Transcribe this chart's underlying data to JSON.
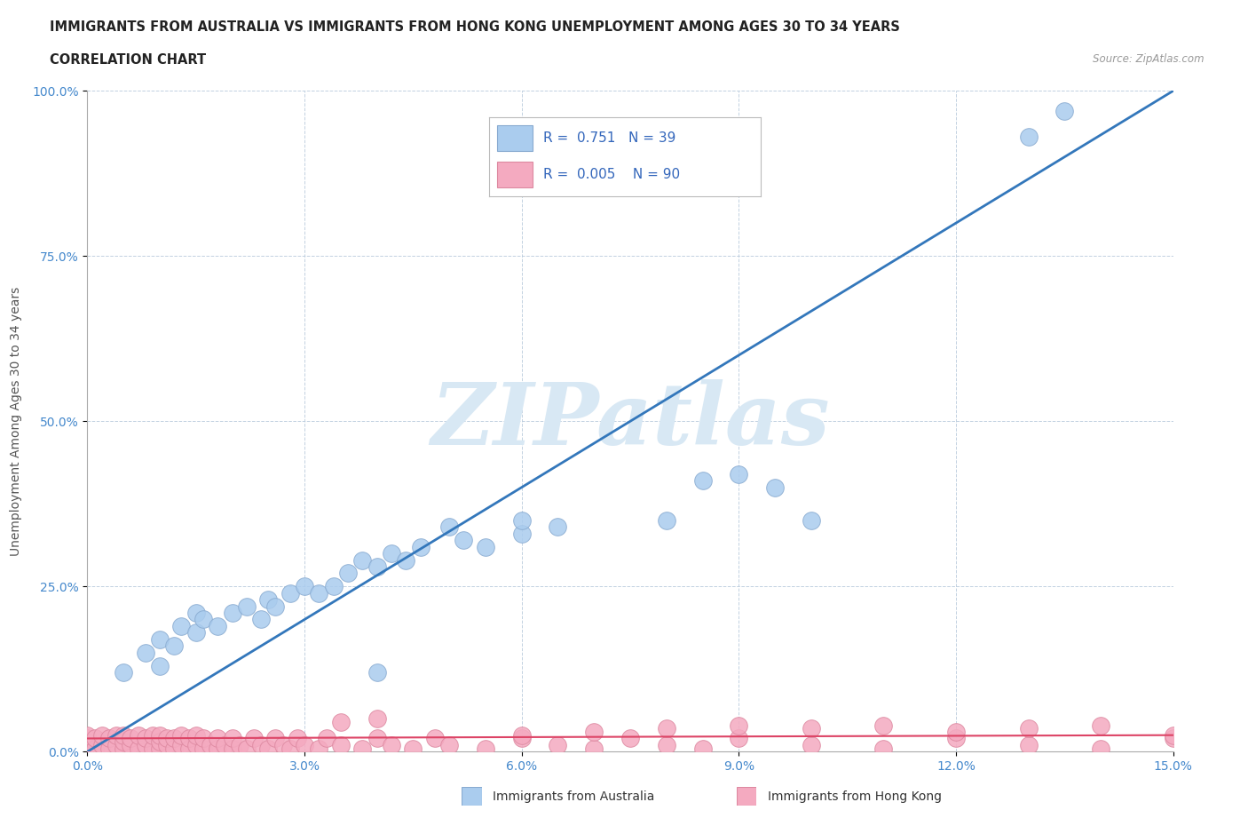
{
  "title_line1": "IMMIGRANTS FROM AUSTRALIA VS IMMIGRANTS FROM HONG KONG UNEMPLOYMENT AMONG AGES 30 TO 34 YEARS",
  "title_line2": "CORRELATION CHART",
  "source_text": "Source: ZipAtlas.com",
  "ylabel": "Unemployment Among Ages 30 to 34 years",
  "xlim": [
    0,
    0.15
  ],
  "ylim": [
    0,
    1.0
  ],
  "xticks": [
    0.0,
    0.03,
    0.06,
    0.09,
    0.12,
    0.15
  ],
  "xtick_labels": [
    "0.0%",
    "3.0%",
    "6.0%",
    "9.0%",
    "12.0%",
    "15.0%"
  ],
  "yticks": [
    0.0,
    0.25,
    0.5,
    0.75,
    1.0
  ],
  "ytick_labels": [
    "0.0%",
    "25.0%",
    "50.0%",
    "75.0%",
    "100.0%"
  ],
  "australia_color": "#aaccee",
  "australia_edge": "#88aad0",
  "hk_color": "#f4aac0",
  "hk_edge": "#dd88a0",
  "trend_australia_color": "#3377bb",
  "trend_hk_color": "#dd4466",
  "trend_australia_x0": 0.0,
  "trend_australia_y0": 0.0,
  "trend_australia_x1": 0.15,
  "trend_australia_y1": 1.0,
  "trend_hk_x0": 0.0,
  "trend_hk_y0": 0.02,
  "trend_hk_x1": 0.15,
  "trend_hk_y1": 0.025,
  "watermark_color": "#d8e8f4",
  "watermark_text": "ZIPatlas",
  "legend_R_australia": "0.751",
  "legend_N_australia": "39",
  "legend_R_hk": "0.005",
  "legend_N_hk": "90",
  "australia_x": [
    0.005,
    0.008,
    0.01,
    0.01,
    0.012,
    0.013,
    0.015,
    0.015,
    0.016,
    0.018,
    0.02,
    0.022,
    0.024,
    0.025,
    0.026,
    0.028,
    0.03,
    0.032,
    0.034,
    0.036,
    0.038,
    0.04,
    0.042,
    0.044,
    0.046,
    0.05,
    0.052,
    0.055,
    0.06,
    0.065,
    0.09,
    0.095,
    0.13,
    0.135,
    0.04,
    0.06,
    0.08,
    0.085,
    0.1
  ],
  "australia_y": [
    0.12,
    0.15,
    0.13,
    0.17,
    0.16,
    0.19,
    0.18,
    0.21,
    0.2,
    0.19,
    0.21,
    0.22,
    0.2,
    0.23,
    0.22,
    0.24,
    0.25,
    0.24,
    0.25,
    0.27,
    0.29,
    0.28,
    0.3,
    0.29,
    0.31,
    0.34,
    0.32,
    0.31,
    0.33,
    0.34,
    0.42,
    0.4,
    0.93,
    0.97,
    0.12,
    0.35,
    0.35,
    0.41,
    0.35
  ],
  "hk_x": [
    0.0,
    0.0,
    0.0,
    0.0,
    0.0,
    0.001,
    0.001,
    0.002,
    0.002,
    0.003,
    0.003,
    0.004,
    0.004,
    0.005,
    0.005,
    0.005,
    0.006,
    0.006,
    0.007,
    0.007,
    0.008,
    0.008,
    0.009,
    0.009,
    0.01,
    0.01,
    0.01,
    0.011,
    0.011,
    0.012,
    0.012,
    0.013,
    0.013,
    0.014,
    0.014,
    0.015,
    0.015,
    0.016,
    0.016,
    0.017,
    0.018,
    0.018,
    0.019,
    0.02,
    0.02,
    0.021,
    0.022,
    0.023,
    0.024,
    0.025,
    0.026,
    0.027,
    0.028,
    0.029,
    0.03,
    0.032,
    0.033,
    0.035,
    0.038,
    0.04,
    0.042,
    0.045,
    0.048,
    0.05,
    0.055,
    0.06,
    0.065,
    0.07,
    0.075,
    0.08,
    0.085,
    0.09,
    0.1,
    0.11,
    0.12,
    0.13,
    0.14,
    0.15,
    0.06,
    0.07,
    0.08,
    0.09,
    0.1,
    0.11,
    0.12,
    0.13,
    0.14,
    0.15,
    0.035,
    0.04
  ],
  "hk_y": [
    0.005,
    0.01,
    0.015,
    0.02,
    0.025,
    0.005,
    0.02,
    0.01,
    0.025,
    0.005,
    0.02,
    0.01,
    0.025,
    0.005,
    0.015,
    0.025,
    0.01,
    0.02,
    0.005,
    0.025,
    0.01,
    0.02,
    0.005,
    0.025,
    0.005,
    0.015,
    0.025,
    0.01,
    0.02,
    0.005,
    0.02,
    0.01,
    0.025,
    0.005,
    0.02,
    0.01,
    0.025,
    0.005,
    0.02,
    0.01,
    0.005,
    0.02,
    0.01,
    0.005,
    0.02,
    0.01,
    0.005,
    0.02,
    0.01,
    0.005,
    0.02,
    0.01,
    0.005,
    0.02,
    0.01,
    0.005,
    0.02,
    0.01,
    0.005,
    0.02,
    0.01,
    0.005,
    0.02,
    0.01,
    0.005,
    0.02,
    0.01,
    0.005,
    0.02,
    0.01,
    0.005,
    0.02,
    0.01,
    0.005,
    0.02,
    0.01,
    0.005,
    0.02,
    0.025,
    0.03,
    0.035,
    0.04,
    0.035,
    0.04,
    0.03,
    0.035,
    0.04,
    0.025,
    0.045,
    0.05
  ]
}
